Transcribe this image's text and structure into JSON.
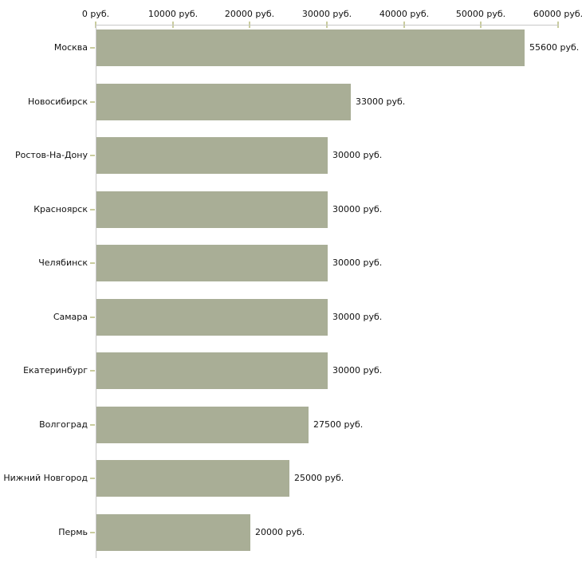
{
  "page": {
    "background": "#ffffff"
  },
  "chart_data": {
    "type": "bar",
    "orientation": "horizontal",
    "title": "",
    "xlabel": "",
    "ylabel": "",
    "unit": "руб.",
    "categories": [
      "Москва",
      "Новосибирск",
      "Ростов-На-Дону",
      "Красноярск",
      "Челябинск",
      "Самара",
      "Екатеринбург",
      "Волгоград",
      "Нижний Новгород",
      "Пермь"
    ],
    "values": [
      55600,
      33000,
      30000,
      30000,
      30000,
      30000,
      30000,
      27500,
      25000,
      20000
    ],
    "value_labels": [
      "55600 руб.",
      "33000 руб.",
      "30000 руб.",
      "30000 руб.",
      "30000 руб.",
      "30000 руб.",
      "30000 руб.",
      "27500 руб.",
      "25000 руб.",
      "20000 руб."
    ],
    "axis_ticks": [
      0,
      10000,
      20000,
      30000,
      40000,
      50000,
      60000
    ],
    "axis_tick_labels": [
      "0 руб.",
      "10000 руб.",
      "20000 руб.",
      "30000 руб.",
      "40000 руб.",
      "50000 руб.",
      "60000 руб."
    ],
    "xlim": [
      0,
      60000
    ],
    "grid": false,
    "legend": false,
    "axis_position": "top",
    "colors": {
      "bar": "#a9ae96",
      "axis_line": "#c8c8c8",
      "tick_mark": "#c9cc9e",
      "label_text": "#111111",
      "background": "#ffffff"
    }
  }
}
